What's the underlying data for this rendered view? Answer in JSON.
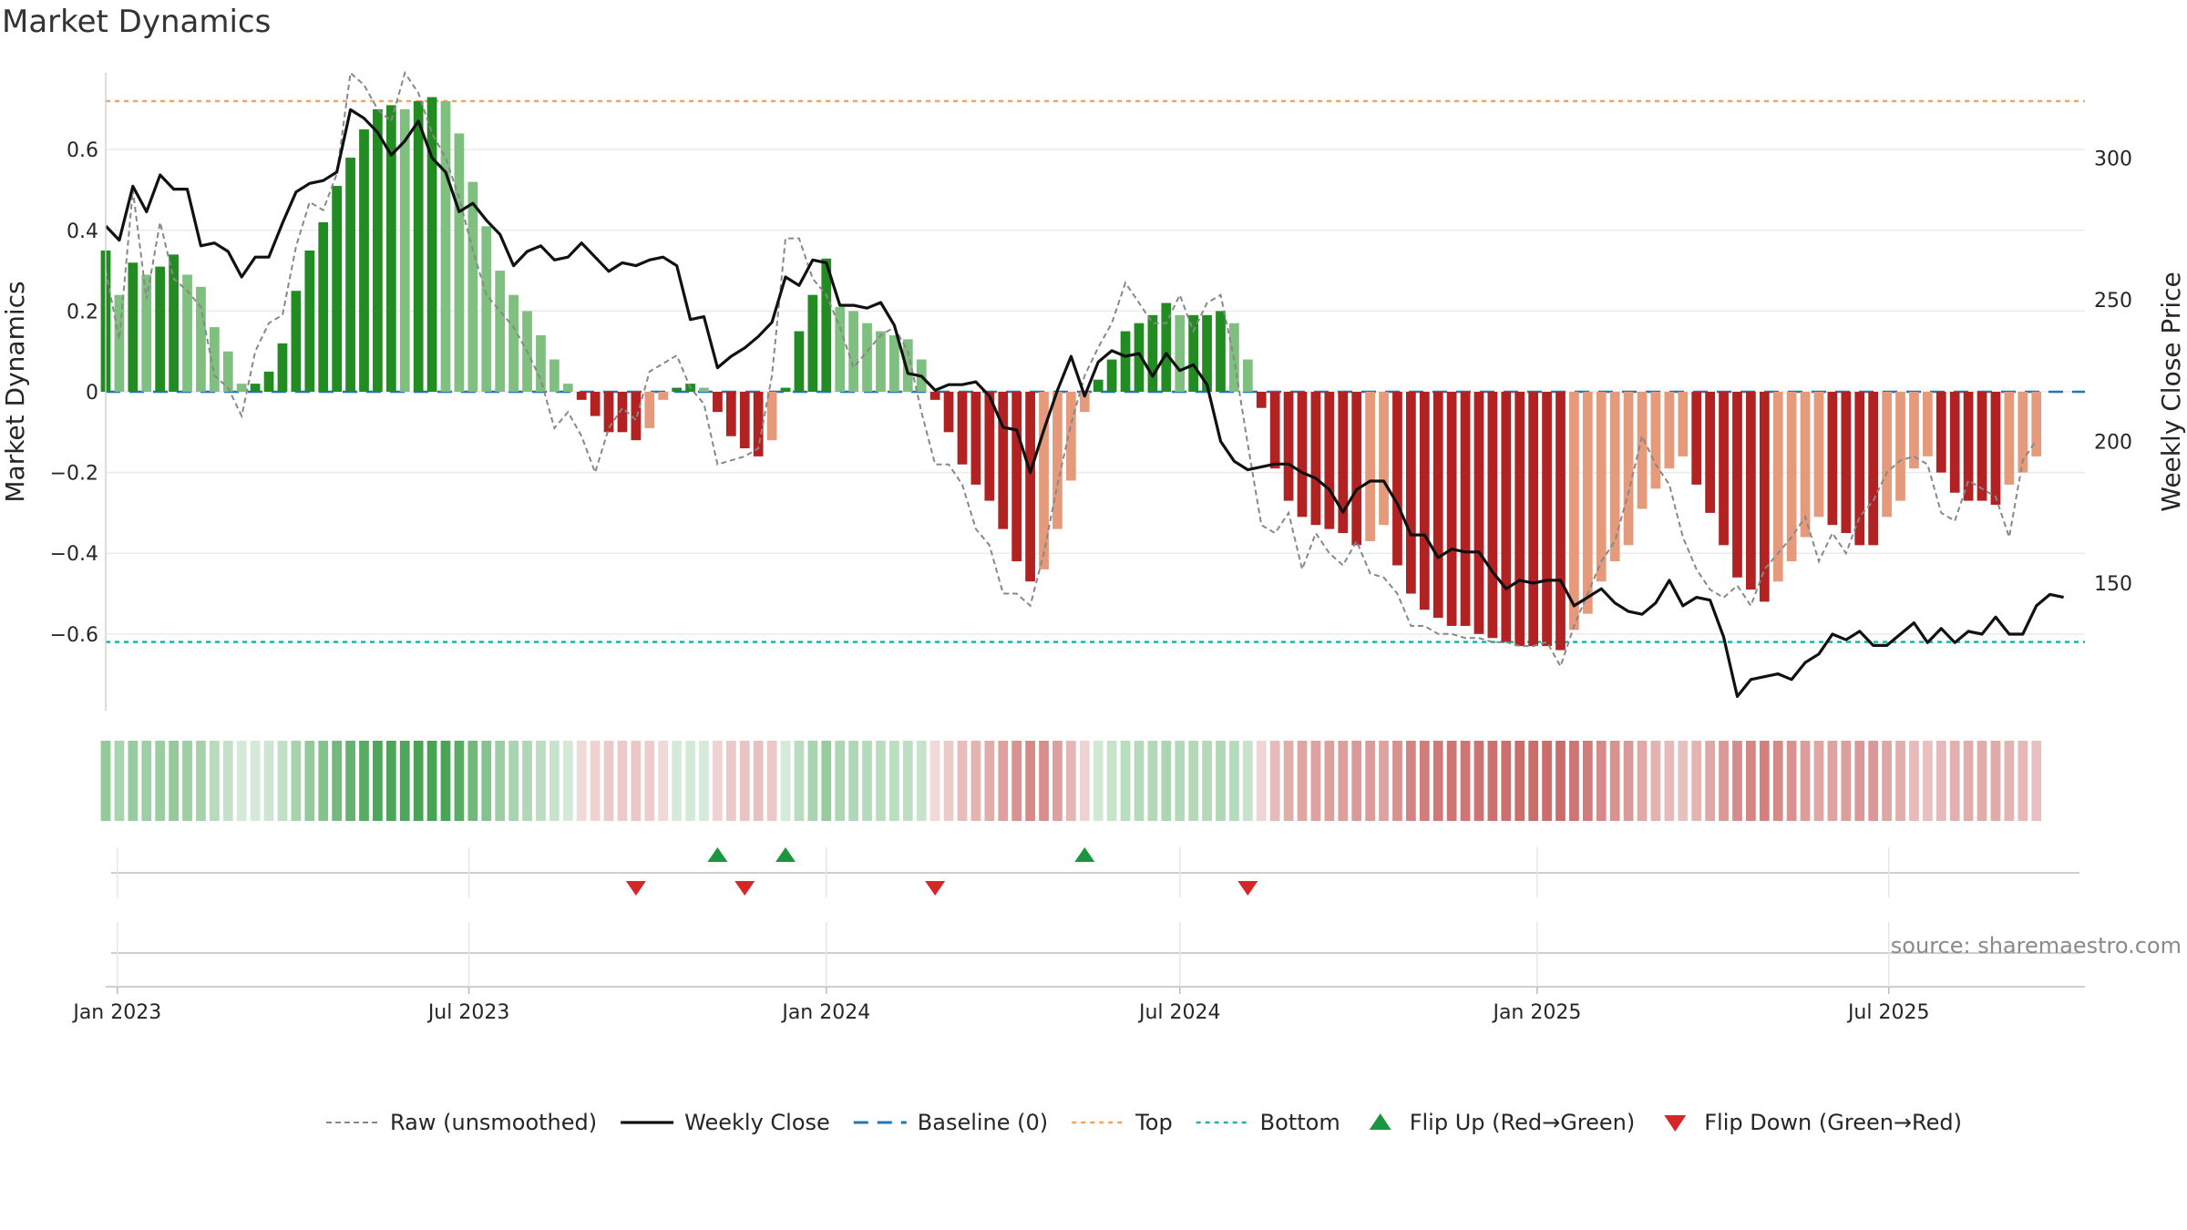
{
  "chart_data": {
    "type": "bar",
    "title": "Market Dynamics",
    "ylabel": "Market Dynamics",
    "y2label": "Weekly Close Price",
    "ylim": [
      -0.79,
      0.79
    ],
    "y2lim": [
      105,
      330
    ],
    "xlim": [
      "2022-12-26",
      "2025-10-10"
    ],
    "first_week": "2022-12-26",
    "grid": true,
    "y_ticks": [
      {
        "v": 0.6,
        "label": "0.6"
      },
      {
        "v": 0.4,
        "label": "0.4"
      },
      {
        "v": 0.2,
        "label": "0.2"
      },
      {
        "v": 0,
        "label": "0"
      },
      {
        "v": -0.2,
        "label": "−0.2"
      },
      {
        "v": -0.4,
        "label": "−0.4"
      },
      {
        "v": -0.6,
        "label": "−0.6"
      }
    ],
    "y2_ticks": [
      {
        "v": 300,
        "label": "300"
      },
      {
        "v": 250,
        "label": "250"
      },
      {
        "v": 200,
        "label": "200"
      },
      {
        "v": 150,
        "label": "150"
      }
    ],
    "x_ticks": [
      {
        "date": "2023-01-01",
        "label": "Jan 2023"
      },
      {
        "date": "2023-07-01",
        "label": "Jul 2023"
      },
      {
        "date": "2024-01-01",
        "label": "Jan 2024"
      },
      {
        "date": "2024-07-01",
        "label": "Jul 2024"
      },
      {
        "date": "2025-01-01",
        "label": "Jan 2025"
      },
      {
        "date": "2025-07-01",
        "label": "Jul 2025"
      }
    ],
    "top_level": 0.72,
    "bottom_level": -0.62,
    "baseline": 0,
    "bars": [
      0.35,
      0.24,
      0.32,
      0.29,
      0.31,
      0.34,
      0.29,
      0.26,
      0.16,
      0.1,
      0.02,
      0.02,
      0.05,
      0.12,
      0.25,
      0.35,
      0.42,
      0.51,
      0.58,
      0.65,
      0.7,
      0.71,
      0.7,
      0.72,
      0.73,
      0.72,
      0.64,
      0.52,
      0.41,
      0.3,
      0.24,
      0.2,
      0.14,
      0.08,
      0.02,
      -0.02,
      -0.06,
      -0.1,
      -0.1,
      -0.12,
      -0.09,
      -0.02,
      0.01,
      0.02,
      0.01,
      -0.05,
      -0.11,
      -0.14,
      -0.16,
      -0.12,
      0.01,
      0.15,
      0.24,
      0.33,
      0.21,
      0.2,
      0.17,
      0.15,
      0.14,
      0.13,
      0.08,
      -0.02,
      -0.1,
      -0.18,
      -0.23,
      -0.27,
      -0.34,
      -0.42,
      -0.47,
      -0.44,
      -0.34,
      -0.22,
      -0.05,
      0.03,
      0.08,
      0.15,
      0.17,
      0.19,
      0.22,
      0.19,
      0.19,
      0.19,
      0.2,
      0.17,
      0.08,
      -0.04,
      -0.19,
      -0.27,
      -0.31,
      -0.33,
      -0.34,
      -0.35,
      -0.38,
      -0.37,
      -0.33,
      -0.43,
      -0.5,
      -0.54,
      -0.56,
      -0.58,
      -0.58,
      -0.6,
      -0.61,
      -0.62,
      -0.63,
      -0.63,
      -0.63,
      -0.64,
      -0.59,
      -0.55,
      -0.47,
      -0.42,
      -0.38,
      -0.29,
      -0.24,
      -0.19,
      -0.16,
      -0.23,
      -0.3,
      -0.38,
      -0.46,
      -0.49,
      -0.52,
      -0.47,
      -0.42,
      -0.36,
      -0.31,
      -0.33,
      -0.35,
      -0.38,
      -0.38,
      -0.31,
      -0.27,
      -0.19,
      -0.16,
      -0.2,
      -0.25,
      -0.27,
      -0.27,
      -0.28,
      -0.23,
      -0.2,
      -0.16
    ],
    "raw": [
      0.3,
      0.13,
      0.5,
      0.23,
      0.42,
      0.28,
      0.25,
      0.21,
      0.04,
      0.01,
      -0.06,
      0.1,
      0.17,
      0.19,
      0.36,
      0.47,
      0.45,
      0.54,
      0.79,
      0.76,
      0.7,
      0.67,
      0.79,
      0.74,
      0.64,
      0.58,
      0.48,
      0.35,
      0.24,
      0.2,
      0.16,
      0.1,
      0.03,
      -0.09,
      -0.05,
      -0.11,
      -0.2,
      -0.09,
      -0.04,
      -0.07,
      0.05,
      0.07,
      0.09,
      0.01,
      -0.03,
      -0.18,
      -0.17,
      -0.16,
      -0.14,
      0.04,
      0.38,
      0.38,
      0.28,
      0.24,
      0.16,
      0.06,
      0.1,
      0.14,
      0.16,
      0.1,
      -0.05,
      -0.18,
      -0.18,
      -0.23,
      -0.34,
      -0.38,
      -0.5,
      -0.5,
      -0.53,
      -0.4,
      -0.23,
      -0.08,
      0.04,
      0.11,
      0.17,
      0.27,
      0.22,
      0.17,
      0.17,
      0.24,
      0.15,
      0.22,
      0.24,
      0.08,
      -0.13,
      -0.33,
      -0.35,
      -0.3,
      -0.44,
      -0.35,
      -0.4,
      -0.43,
      -0.37,
      -0.45,
      -0.46,
      -0.5,
      -0.58,
      -0.58,
      -0.6,
      -0.6,
      -0.61,
      -0.61,
      -0.62,
      -0.62,
      -0.63,
      -0.63,
      -0.62,
      -0.68,
      -0.58,
      -0.5,
      -0.42,
      -0.37,
      -0.25,
      -0.11,
      -0.18,
      -0.23,
      -0.36,
      -0.44,
      -0.49,
      -0.51,
      -0.48,
      -0.53,
      -0.44,
      -0.4,
      -0.36,
      -0.31,
      -0.42,
      -0.35,
      -0.4,
      -0.31,
      -0.27,
      -0.2,
      -0.17,
      -0.16,
      -0.18,
      -0.3,
      -0.32,
      -0.22,
      -0.24,
      -0.26,
      -0.36,
      -0.17,
      -0.12
    ],
    "close": [
      276,
      271,
      290,
      281,
      294,
      289,
      289,
      269,
      270,
      267,
      258,
      265,
      265,
      277,
      288,
      291,
      292,
      295,
      317,
      314,
      309,
      301,
      306,
      313,
      300,
      295,
      281,
      284,
      278,
      273,
      262,
      267,
      269,
      264,
      265,
      270,
      265,
      260,
      263,
      262,
      264,
      265,
      262,
      243,
      244,
      226,
      230,
      233,
      237,
      242,
      258,
      255,
      264,
      263,
      248,
      248,
      247,
      249,
      241,
      224,
      223,
      218,
      220,
      220,
      221,
      216,
      205,
      204,
      189,
      204,
      218,
      230,
      216,
      228,
      232,
      230,
      231,
      223,
      231,
      225,
      227,
      220,
      200,
      193,
      190,
      191,
      192,
      192,
      189,
      187,
      183,
      175,
      183,
      186,
      186,
      178,
      167,
      167,
      159,
      162,
      161,
      161,
      154,
      148,
      151,
      150,
      151,
      151,
      142,
      145,
      148,
      143,
      140,
      139,
      143,
      151,
      142,
      145,
      144,
      131,
      110,
      116,
      117,
      118,
      116,
      122,
      125,
      132,
      130,
      133,
      128,
      128,
      132,
      136,
      129,
      134,
      129,
      133,
      132,
      138,
      132,
      132,
      142,
      146,
      145
    ],
    "flips_up": [
      "2023-11-06",
      "2023-12-11",
      "2024-05-13"
    ],
    "flips_down": [
      "2023-09-25",
      "2023-11-20",
      "2024-02-26",
      "2024-08-05"
    ],
    "legend": [
      {
        "label": "Raw (unsmoothed)",
        "kind": "dashed-gray"
      },
      {
        "label": "Weekly Close",
        "kind": "solid-black"
      },
      {
        "label": "Baseline (0)",
        "kind": "dashed-blue"
      },
      {
        "label": "Top",
        "kind": "dotted-orange"
      },
      {
        "label": "Bottom",
        "kind": "dotted-cyan"
      },
      {
        "label": "Flip Up (Red→Green)",
        "kind": "tri-up"
      },
      {
        "label": "Flip Down (Green→Red)",
        "kind": "tri-down"
      }
    ],
    "source": "source: sharemaestro.com"
  },
  "colors": {
    "green_strong": "#228B22",
    "green_light": "#7FBF7F",
    "red_strong": "#B22222",
    "red_light": "#E59A7C",
    "raw_line": "#888888",
    "close_line": "#111111",
    "baseline": "#1F77B4",
    "top_line": "#F4A460",
    "bottom_line": "#20B2AA",
    "flip_up": "#1A9641",
    "flip_down": "#D62728",
    "strip_green": "#3A9C48",
    "strip_red": "#C0504D"
  }
}
